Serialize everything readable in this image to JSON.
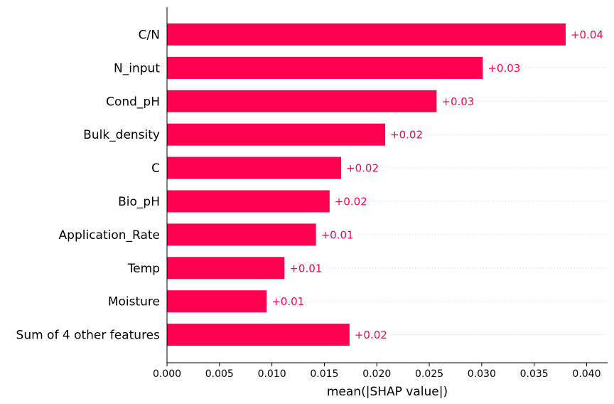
{
  "chart_data": {
    "type": "bar",
    "orientation": "horizontal",
    "categories": [
      "C/N",
      "N_input",
      "Cond_pH",
      "Bulk_density",
      "C",
      "Bio_pH",
      "Application_Rate",
      "Temp",
      "Moisture",
      "Sum of 4 other features"
    ],
    "values": [
      0.038,
      0.0301,
      0.0257,
      0.0208,
      0.0166,
      0.0155,
      0.0142,
      0.0112,
      0.0095,
      0.0174
    ],
    "data_labels": [
      "+0.04",
      "+0.03",
      "+0.03",
      "+0.02",
      "+0.02",
      "+0.02",
      "+0.01",
      "+0.01",
      "+0.01",
      "+0.02"
    ],
    "xlabel": "mean(|SHAP value|)",
    "xlim": [
      0,
      0.042
    ],
    "xticks": [
      0.0,
      0.005,
      0.01,
      0.015,
      0.02,
      0.025,
      0.03,
      0.035,
      0.04
    ],
    "xtick_labels": [
      "0.000",
      "0.005",
      "0.010",
      "0.015",
      "0.020",
      "0.025",
      "0.030",
      "0.035",
      "0.040"
    ],
    "bar_color": "#ff0051",
    "label_color": "#ff0051",
    "row_guides": "dotted",
    "grid": false
  }
}
